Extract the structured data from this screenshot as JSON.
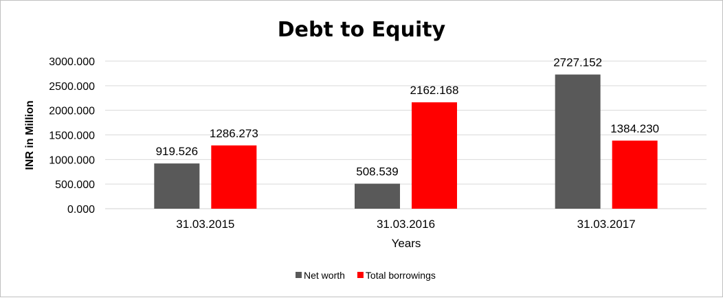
{
  "chart_data": {
    "type": "bar",
    "title": "Debt to Equity",
    "xlabel": "Years",
    "ylabel": "INR in Million",
    "categories": [
      "31.03.2015",
      "31.03.2016",
      "31.03.2017"
    ],
    "series": [
      {
        "name": "Net worth",
        "color": "#595959",
        "values": [
          919.526,
          508.539,
          2727.152
        ],
        "labels": [
          "919.526",
          "508.539",
          "2727.152"
        ]
      },
      {
        "name": "Total borrowings",
        "color": "#ff0000",
        "values": [
          1286.273,
          2162.168,
          1384.23
        ],
        "labels": [
          "1286.273",
          "2162.168",
          "1384.230"
        ]
      }
    ],
    "ylim": [
      0,
      3000
    ],
    "yticks": [
      "0.000",
      "500.000",
      "1000.000",
      "1500.000",
      "2000.000",
      "2500.000",
      "3000.000"
    ],
    "grid": true,
    "legend": "bottom"
  }
}
